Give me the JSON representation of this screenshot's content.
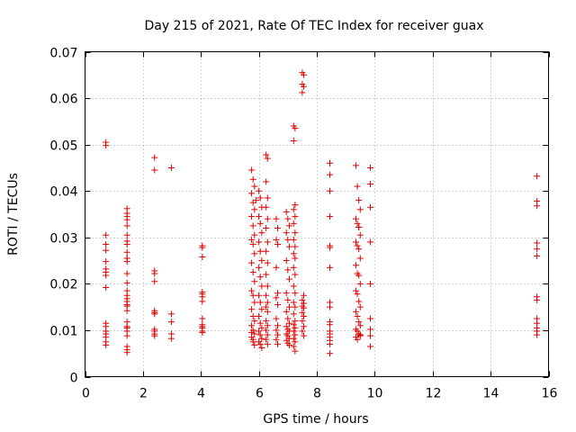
{
  "chart_data": {
    "type": "scatter",
    "title": "Day 215 of 2021, Rate Of TEC Index for receiver guax",
    "xlabel": "GPS time / hours",
    "ylabel": "ROTI / TECUs",
    "xlim": [
      0,
      16
    ],
    "ylim": [
      0,
      0.07
    ],
    "xticks": [
      0,
      2,
      4,
      6,
      8,
      10,
      12,
      14,
      16
    ],
    "xtick_labels": [
      "0",
      "2",
      "4",
      "6",
      "8",
      "10",
      "12",
      "14",
      "16"
    ],
    "yticks": [
      0,
      0.01,
      0.02,
      0.03,
      0.04,
      0.05,
      0.06,
      0.07
    ],
    "ytick_labels": [
      "0",
      "0.01",
      "0.02",
      "0.03",
      "0.04",
      "0.05",
      "0.06",
      "0.07"
    ],
    "grid": true,
    "legend": "none",
    "marker": "+",
    "color": "#e00000",
    "series": [
      {
        "x": [
          0.72,
          0.72,
          0.72,
          0.72,
          0.72,
          0.72,
          0.72,
          0.72,
          0.72,
          0.72,
          0.72,
          0.72,
          0.72,
          0.72,
          0.72,
          0.72,
          0.72,
          1.45,
          1.45,
          1.45,
          1.45,
          1.45,
          1.45,
          1.45,
          1.45,
          1.45,
          1.45,
          1.45,
          1.45,
          1.45,
          1.45,
          1.45,
          1.45,
          1.45,
          1.45,
          1.45,
          1.45,
          1.45,
          1.45,
          1.45,
          1.45,
          1.45,
          1.45,
          1.45,
          1.45,
          1.45,
          2.4,
          2.4,
          2.4,
          2.4,
          2.4,
          2.4,
          2.4,
          2.4,
          2.4,
          2.4,
          2.4,
          2.4,
          2.98,
          2.98,
          2.98,
          2.98,
          2.98,
          4.05,
          4.05,
          4.05,
          4.05,
          4.05,
          4.05,
          4.05,
          4.05,
          4.05,
          4.05,
          4.05,
          4.05,
          4.05,
          5.75,
          5.8,
          5.85,
          5.75,
          5.8,
          5.85,
          5.75,
          5.8,
          5.85,
          5.75,
          5.8,
          5.85,
          5.75,
          5.8,
          5.85,
          5.75,
          5.8,
          5.85,
          5.75,
          5.8,
          5.85,
          5.75,
          5.8,
          5.85,
          5.75,
          5.8,
          5.85,
          5.75,
          5.8,
          5.9,
          6.0,
          6.05,
          6.1,
          6.0,
          6.05,
          6.1,
          6.0,
          6.05,
          6.1,
          6.0,
          6.05,
          6.1,
          6.0,
          6.05,
          6.1,
          6.0,
          6.05,
          6.1,
          6.0,
          6.05,
          6.1,
          6.0,
          6.05,
          6.1,
          6.25,
          6.3,
          6.25,
          6.3,
          6.25,
          6.3,
          6.25,
          6.3,
          6.25,
          6.3,
          6.25,
          6.3,
          6.25,
          6.3,
          6.25,
          6.3,
          6.25,
          6.3,
          6.25,
          6.3,
          6.25,
          6.3,
          6.6,
          6.65,
          6.6,
          6.65,
          6.6,
          6.65,
          6.6,
          6.65,
          6.6,
          6.65,
          6.6,
          6.65,
          6.6,
          6.65,
          6.95,
          7.0,
          7.05,
          6.95,
          7.0,
          7.05,
          6.95,
          7.0,
          7.05,
          6.95,
          7.0,
          7.05,
          6.95,
          7.0,
          7.05,
          6.95,
          7.0,
          7.05,
          6.95,
          7.0,
          7.05,
          6.95,
          7.0,
          7.05,
          7.2,
          7.25,
          7.2,
          7.25,
          7.2,
          7.25,
          7.2,
          7.25,
          7.2,
          7.25,
          7.2,
          7.25,
          7.2,
          7.25,
          7.2,
          7.25,
          7.2,
          7.25,
          7.2,
          7.25,
          7.2,
          7.25,
          7.2,
          7.25,
          7.2,
          7.25,
          7.2,
          7.25,
          7.5,
          7.55,
          7.5,
          7.55,
          7.5,
          7.55,
          7.5,
          7.55,
          7.5,
          7.55,
          7.5,
          7.55,
          7.5,
          7.55,
          7.5,
          7.55,
          8.45,
          8.45,
          8.45,
          8.45,
          8.45,
          8.45,
          8.45,
          8.45,
          8.45,
          8.45,
          8.45,
          8.45,
          8.45,
          8.45,
          8.45,
          8.45,
          8.45,
          9.35,
          9.4,
          9.45,
          9.5,
          9.35,
          9.4,
          9.45,
          9.5,
          9.35,
          9.4,
          9.45,
          9.5,
          9.35,
          9.4,
          9.45,
          9.5,
          9.35,
          9.4,
          9.45,
          9.5,
          9.35,
          9.4,
          9.45,
          9.5,
          9.35,
          9.4,
          9.45,
          9.5,
          9.35,
          9.4,
          9.45,
          9.5,
          9.85,
          9.85,
          9.85,
          9.85,
          9.85,
          9.85,
          9.85,
          9.85,
          9.85,
          15.6,
          15.6,
          15.6,
          15.6,
          15.6,
          15.6,
          15.6,
          15.6,
          15.6,
          15.6,
          15.6,
          15.6,
          15.6
        ],
        "y": [
          0.0505,
          0.0498,
          0.0305,
          0.0285,
          0.0272,
          0.0248,
          0.0232,
          0.0225,
          0.0218,
          0.0192,
          0.0115,
          0.0108,
          0.0098,
          0.0092,
          0.0085,
          0.0075,
          0.0068,
          0.0362,
          0.0352,
          0.0345,
          0.0338,
          0.0325,
          0.0305,
          0.0292,
          0.0285,
          0.0268,
          0.0255,
          0.0248,
          0.0222,
          0.0202,
          0.0185,
          0.0175,
          0.0168,
          0.0162,
          0.0152,
          0.0142,
          0.0118,
          0.0108,
          0.0098,
          0.0088,
          0.0065,
          0.0058,
          0.0052,
          0.0105,
          0.0155,
          0.0255,
          0.0472,
          0.0445,
          0.0228,
          0.0222,
          0.0205,
          0.0142,
          0.0138,
          0.0098,
          0.0092,
          0.0088,
          0.0102,
          0.0135,
          0.045,
          0.0135,
          0.0118,
          0.0092,
          0.0082,
          0.0282,
          0.0278,
          0.0258,
          0.0182,
          0.0178,
          0.0172,
          0.0162,
          0.0125,
          0.0112,
          0.0105,
          0.0098,
          0.0095,
          0.0108,
          0.0445,
          0.0425,
          0.041,
          0.0395,
          0.0375,
          0.036,
          0.0345,
          0.0325,
          0.0305,
          0.0295,
          0.0285,
          0.0265,
          0.0245,
          0.0225,
          0.0205,
          0.0185,
          0.0175,
          0.016,
          0.0145,
          0.013,
          0.012,
          0.011,
          0.01,
          0.0092,
          0.0085,
          0.0075,
          0.0068,
          0.0095,
          0.008,
          0.038,
          0.04,
          0.0385,
          0.0365,
          0.0345,
          0.033,
          0.031,
          0.029,
          0.027,
          0.025,
          0.0235,
          0.0215,
          0.0195,
          0.0175,
          0.016,
          0.0145,
          0.013,
          0.0115,
          0.0105,
          0.0098,
          0.009,
          0.0082,
          0.0075,
          0.007,
          0.0062,
          0.0478,
          0.047,
          0.042,
          0.0385,
          0.0365,
          0.034,
          0.032,
          0.029,
          0.027,
          0.0245,
          0.022,
          0.0195,
          0.0175,
          0.016,
          0.015,
          0.014,
          0.012,
          0.011,
          0.01,
          0.009,
          0.008,
          0.007,
          0.034,
          0.032,
          0.0295,
          0.0285,
          0.0235,
          0.018,
          0.017,
          0.0155,
          0.0125,
          0.011,
          0.01,
          0.009,
          0.008,
          0.007,
          0.0355,
          0.034,
          0.0325,
          0.031,
          0.0295,
          0.028,
          0.025,
          0.023,
          0.021,
          0.018,
          0.0165,
          0.015,
          0.014,
          0.0125,
          0.0115,
          0.0108,
          0.0102,
          0.0098,
          0.0092,
          0.0088,
          0.0082,
          0.0078,
          0.0072,
          0.0068,
          0.054,
          0.0535,
          0.0508,
          0.037,
          0.036,
          0.0345,
          0.033,
          0.031,
          0.0295,
          0.028,
          0.0265,
          0.0255,
          0.0235,
          0.022,
          0.0195,
          0.018,
          0.016,
          0.015,
          0.0135,
          0.012,
          0.0112,
          0.0105,
          0.0098,
          0.009,
          0.0082,
          0.0075,
          0.0065,
          0.0055,
          0.0655,
          0.065,
          0.063,
          0.0625,
          0.0612,
          0.0175,
          0.0165,
          0.0158,
          0.0152,
          0.0148,
          0.0138,
          0.013,
          0.012,
          0.0108,
          0.0098,
          0.0088,
          0.046,
          0.0435,
          0.04,
          0.0345,
          0.0282,
          0.0278,
          0.0235,
          0.016,
          0.015,
          0.0118,
          0.0112,
          0.0098,
          0.0092,
          0.0085,
          0.0078,
          0.007,
          0.005,
          0.0455,
          0.041,
          0.038,
          0.036,
          0.034,
          0.033,
          0.0322,
          0.0305,
          0.029,
          0.0282,
          0.0275,
          0.0255,
          0.024,
          0.0222,
          0.0218,
          0.02,
          0.0185,
          0.0178,
          0.0162,
          0.015,
          0.014,
          0.013,
          0.0118,
          0.011,
          0.0102,
          0.0098,
          0.0092,
          0.0088,
          0.0085,
          0.008,
          0.0322,
          0.009,
          0.045,
          0.0415,
          0.0365,
          0.029,
          0.02,
          0.0125,
          0.0102,
          0.0088,
          0.0065,
          0.0432,
          0.0378,
          0.0368,
          0.0288,
          0.0275,
          0.026,
          0.0172,
          0.0165,
          0.0125,
          0.0115,
          0.0105,
          0.0098,
          0.009
        ]
      }
    ]
  }
}
